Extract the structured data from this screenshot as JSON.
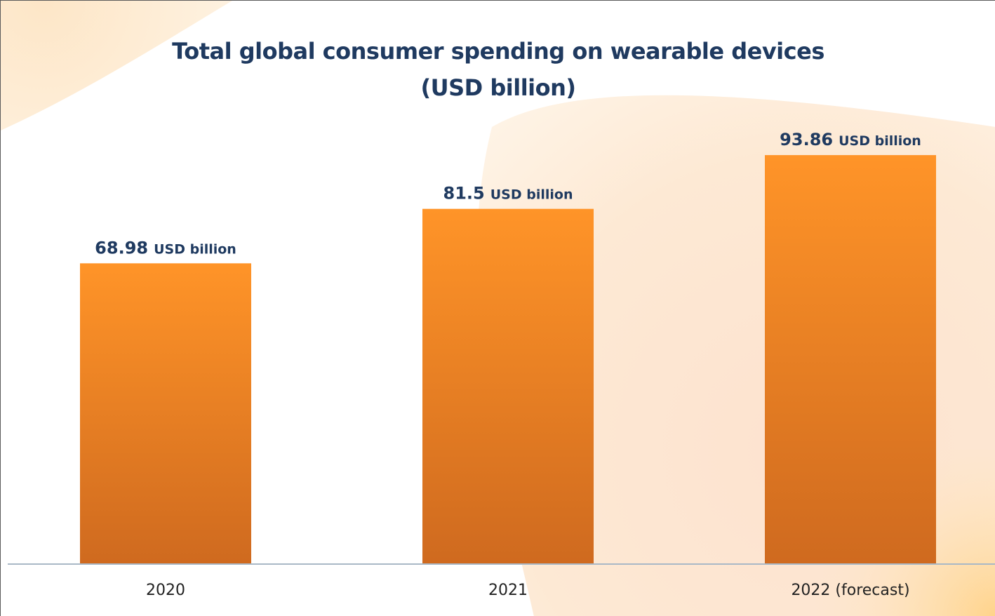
{
  "chart_data": {
    "type": "bar",
    "title": "Total global consumer spending on wearable devices (USD billion)",
    "title_lines": [
      "Total global consumer spending on wearable devices",
      "(USD billion)"
    ],
    "categories": [
      "2020",
      "2021",
      "2022 (forecast)"
    ],
    "values": [
      68.98,
      81.5,
      93.86
    ],
    "data_labels": [
      {
        "value": "68.98",
        "unit": "USD billion"
      },
      {
        "value": "81.5",
        "unit": "USD billion"
      },
      {
        "value": "93.86",
        "unit": "USD billion"
      }
    ],
    "xlabel": "",
    "ylabel": "",
    "ylim": [
      0,
      100
    ],
    "grid": false,
    "legend": "none",
    "colors": {
      "bar_top": "#ff9428",
      "bar_bottom": "#cf6a1f",
      "label_text": "#1f3a60",
      "axis_line": "#a9b8c6",
      "background_accent": "#ffd9a0"
    }
  }
}
